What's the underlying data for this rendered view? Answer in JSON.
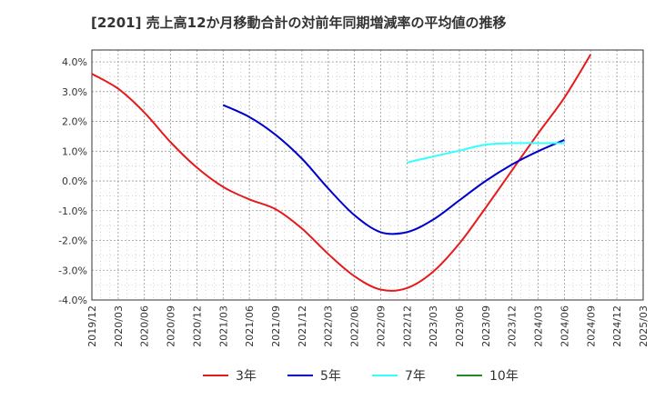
{
  "chart_data": {
    "type": "line",
    "title": "[2201]  売上高12か月移動合計の対前年同期増減率の平均値の推移",
    "xlabel": "",
    "ylabel": "",
    "ylim": [
      -4.0,
      4.4
    ],
    "y_ticks": [
      "4.0%",
      "3.0%",
      "2.0%",
      "1.0%",
      "0.0%",
      "-1.0%",
      "-2.0%",
      "-3.0%",
      "-4.0%"
    ],
    "x_ticks": [
      "2019/12",
      "2020/03",
      "2020/06",
      "2020/09",
      "2020/12",
      "2021/03",
      "2021/06",
      "2021/09",
      "2021/12",
      "2022/03",
      "2022/06",
      "2022/09",
      "2022/12",
      "2023/03",
      "2023/06",
      "2023/09",
      "2023/12",
      "2024/03",
      "2024/06",
      "2024/09",
      "2024/12",
      "2025/03"
    ],
    "grid": true,
    "legend_position": "bottom",
    "series": [
      {
        "name": "3年",
        "color": "#e41a1c",
        "points": [
          [
            "2019/12",
            3.6
          ],
          [
            "2020/03",
            3.1
          ],
          [
            "2020/06",
            2.3
          ],
          [
            "2020/09",
            1.3
          ],
          [
            "2020/12",
            0.45
          ],
          [
            "2021/03",
            -0.2
          ],
          [
            "2021/06",
            -0.62
          ],
          [
            "2021/09",
            -0.95
          ],
          [
            "2021/12",
            -1.6
          ],
          [
            "2022/03",
            -2.45
          ],
          [
            "2022/06",
            -3.2
          ],
          [
            "2022/09",
            -3.65
          ],
          [
            "2022/12",
            -3.6
          ],
          [
            "2023/03",
            -3.05
          ],
          [
            "2023/06",
            -2.1
          ],
          [
            "2023/09",
            -0.9
          ],
          [
            "2023/12",
            0.35
          ],
          [
            "2024/03",
            1.6
          ],
          [
            "2024/06",
            2.8
          ],
          [
            "2024/09",
            4.25
          ]
        ]
      },
      {
        "name": "5年",
        "color": "#0000cc",
        "points": [
          [
            "2021/03",
            2.55
          ],
          [
            "2021/06",
            2.15
          ],
          [
            "2021/09",
            1.55
          ],
          [
            "2021/12",
            0.75
          ],
          [
            "2022/03",
            -0.25
          ],
          [
            "2022/06",
            -1.15
          ],
          [
            "2022/09",
            -1.72
          ],
          [
            "2022/12",
            -1.72
          ],
          [
            "2023/03",
            -1.3
          ],
          [
            "2023/06",
            -0.65
          ],
          [
            "2023/09",
            0.0
          ],
          [
            "2023/12",
            0.55
          ],
          [
            "2024/03",
            1.0
          ],
          [
            "2024/06",
            1.38
          ]
        ]
      },
      {
        "name": "7年",
        "color": "#33ffff",
        "points": [
          [
            "2022/12",
            0.62
          ],
          [
            "2023/03",
            0.82
          ],
          [
            "2023/06",
            1.02
          ],
          [
            "2023/09",
            1.22
          ],
          [
            "2023/12",
            1.27
          ],
          [
            "2024/03",
            1.27
          ],
          [
            "2024/06",
            1.27
          ]
        ]
      },
      {
        "name": "10年",
        "color": "#228b22",
        "points": []
      }
    ]
  }
}
